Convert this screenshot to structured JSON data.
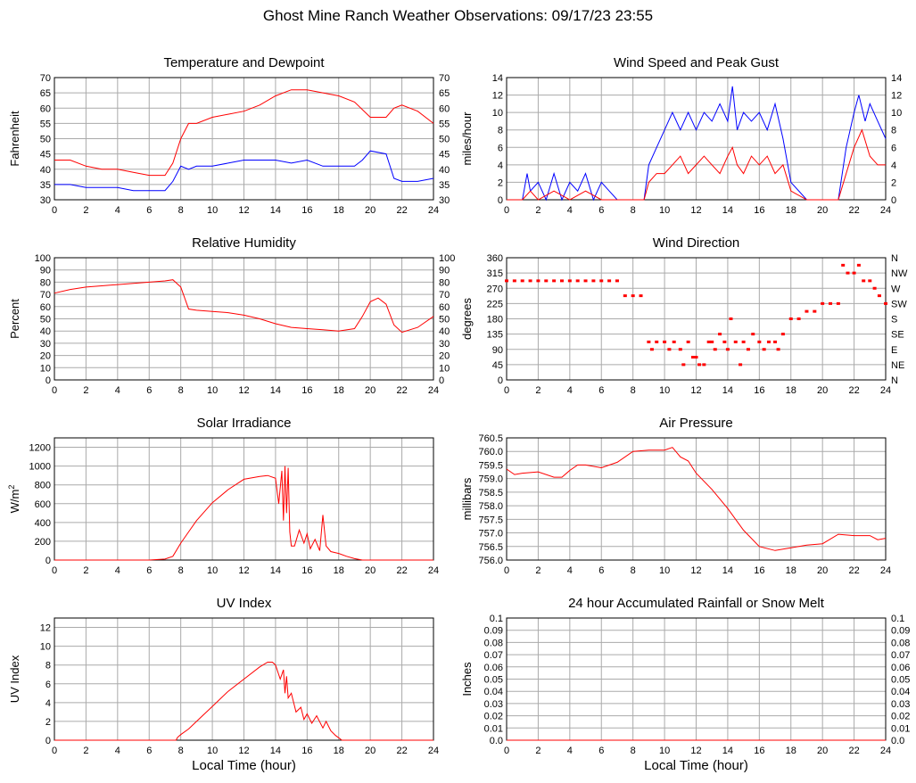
{
  "page": {
    "title": "Ghost Mine Ranch Weather Observations: 09/17/23 23:55"
  },
  "colors": {
    "primary": "#ff0000",
    "secondary": "#0000ff",
    "grid": "#aaaaaa",
    "axis": "#000000"
  },
  "chart_data": [
    {
      "id": "temp",
      "type": "line",
      "title": "Temperature and Dewpoint",
      "xlabel": "",
      "ylabel": "Fahrenheit",
      "ylabel_sup": "",
      "xlim": [
        0,
        24
      ],
      "ylim": [
        30,
        70
      ],
      "xticks": [
        "0",
        "2",
        "4",
        "6",
        "8",
        "10",
        "12",
        "14",
        "16",
        "18",
        "20",
        "22",
        "24"
      ],
      "yticks": [
        "30",
        "35",
        "40",
        "45",
        "50",
        "55",
        "60",
        "65",
        "70"
      ],
      "right_ticks": [
        "30",
        "35",
        "40",
        "45",
        "50",
        "55",
        "60",
        "65",
        "70"
      ],
      "series": [
        {
          "color": "#ff0000",
          "x": [
            0,
            1,
            2,
            3,
            4,
            5,
            6,
            7,
            7.5,
            8,
            8.5,
            9,
            10,
            11,
            12,
            13,
            14,
            15,
            16,
            17,
            18,
            19,
            20,
            21,
            21.5,
            22,
            23,
            24
          ],
          "y": [
            43,
            43,
            41,
            40,
            40,
            39,
            38,
            38,
            42,
            50,
            55,
            55,
            57,
            58,
            59,
            61,
            64,
            66,
            66,
            65,
            64,
            62,
            57,
            57,
            60,
            61,
            59,
            55
          ]
        },
        {
          "color": "#0000ff",
          "x": [
            0,
            1,
            2,
            3,
            4,
            5,
            6,
            7,
            7.5,
            8,
            8.5,
            9,
            10,
            11,
            12,
            13,
            14,
            15,
            16,
            17,
            18,
            19,
            19.5,
            20,
            21,
            21.5,
            22,
            23,
            24
          ],
          "y": [
            35,
            35,
            34,
            34,
            34,
            33,
            33,
            33,
            36,
            41,
            40,
            41,
            41,
            42,
            43,
            43,
            43,
            42,
            43,
            41,
            41,
            41,
            43,
            46,
            45,
            37,
            36,
            36,
            37
          ]
        }
      ]
    },
    {
      "id": "wind",
      "type": "line",
      "title": "Wind Speed and Peak Gust",
      "xlabel": "",
      "ylabel": "miles/hour",
      "ylabel_sup": "",
      "xlim": [
        0,
        24
      ],
      "ylim": [
        0,
        14
      ],
      "xticks": [
        "0",
        "2",
        "4",
        "6",
        "8",
        "10",
        "12",
        "14",
        "16",
        "18",
        "20",
        "22",
        "24"
      ],
      "yticks": [
        "0",
        "2",
        "4",
        "6",
        "8",
        "10",
        "12",
        "14"
      ],
      "right_ticks": [
        "0",
        "2",
        "4",
        "6",
        "8",
        "10",
        "12",
        "14"
      ],
      "series": [
        {
          "color": "#0000ff",
          "x": [
            0,
            1,
            1.3,
            1.5,
            2,
            2.5,
            3,
            3.5,
            4,
            4.5,
            5,
            5.5,
            6,
            6.5,
            7,
            8,
            8.7,
            9,
            9.5,
            10,
            10.5,
            11,
            11.5,
            12,
            12.5,
            13,
            13.5,
            14,
            14.3,
            14.6,
            15,
            15.5,
            16,
            16.5,
            17,
            17.5,
            18,
            19,
            20,
            21,
            21.5,
            22,
            22.3,
            22.7,
            23,
            23.5,
            24
          ],
          "y": [
            0,
            0,
            3,
            1,
            2,
            0,
            3,
            0,
            2,
            1,
            3,
            0,
            2,
            1,
            0,
            0,
            0,
            4,
            6,
            8,
            10,
            8,
            10,
            8,
            10,
            9,
            11,
            9,
            13,
            8,
            10,
            9,
            10,
            8,
            11,
            7,
            2,
            0,
            0,
            0,
            6,
            10,
            12,
            9,
            11,
            9,
            7
          ]
        },
        {
          "color": "#ff0000",
          "x": [
            0,
            1,
            1.5,
            2,
            3,
            4,
            5,
            6,
            8.7,
            9,
            9.5,
            10,
            10.5,
            11,
            11.5,
            12,
            12.5,
            13,
            13.5,
            14,
            14.3,
            14.6,
            15,
            15.5,
            16,
            16.5,
            17,
            17.5,
            18,
            19,
            21,
            21.5,
            22,
            22.5,
            23,
            23.5,
            24
          ],
          "y": [
            0,
            0,
            1,
            0,
            1,
            0,
            1,
            0,
            0,
            2,
            3,
            3,
            4,
            5,
            3,
            4,
            5,
            4,
            3,
            5,
            6,
            4,
            3,
            5,
            4,
            5,
            3,
            4,
            1,
            0,
            0,
            3,
            6,
            8,
            5,
            4,
            4
          ]
        }
      ]
    },
    {
      "id": "humidity",
      "type": "line",
      "title": "Relative Humidity",
      "xlabel": "",
      "ylabel": "Percent",
      "ylabel_sup": "",
      "xlim": [
        0,
        24
      ],
      "ylim": [
        0,
        100
      ],
      "xticks": [
        "0",
        "2",
        "4",
        "6",
        "8",
        "10",
        "12",
        "14",
        "16",
        "18",
        "20",
        "22",
        "24"
      ],
      "yticks": [
        "0",
        "10",
        "20",
        "30",
        "40",
        "50",
        "60",
        "70",
        "80",
        "90",
        "100"
      ],
      "right_ticks": [
        "0",
        "10",
        "20",
        "30",
        "40",
        "50",
        "60",
        "70",
        "80",
        "90",
        "100"
      ],
      "series": [
        {
          "color": "#ff0000",
          "x": [
            0,
            1,
            2,
            3,
            4,
            5,
            6,
            7,
            7.5,
            8,
            8.5,
            9,
            10,
            11,
            12,
            13,
            14,
            15,
            16,
            17,
            18,
            19,
            19.5,
            20,
            20.5,
            21,
            21.5,
            22,
            23,
            24
          ],
          "y": [
            71,
            74,
            76,
            77,
            78,
            79,
            80,
            81,
            82,
            76,
            58,
            57,
            56,
            55,
            53,
            50,
            46,
            43,
            42,
            41,
            40,
            42,
            52,
            64,
            67,
            62,
            45,
            39,
            43,
            52
          ]
        }
      ]
    },
    {
      "id": "winddir",
      "type": "scatter",
      "title": "Wind Direction",
      "xlabel": "",
      "ylabel": "degrees",
      "ylabel_sup": "",
      "xlim": [
        0,
        24
      ],
      "ylim": [
        0,
        360
      ],
      "xticks": [
        "0",
        "2",
        "4",
        "6",
        "8",
        "10",
        "12",
        "14",
        "16",
        "18",
        "20",
        "22",
        "24"
      ],
      "yticks": [
        "0",
        "45",
        "90",
        "135",
        "180",
        "225",
        "270",
        "315",
        "360"
      ],
      "right_ticks": [
        "N",
        "NE",
        "E",
        "SE",
        "S",
        "SW",
        "W",
        "NW",
        "N"
      ],
      "series": [
        {
          "color": "#ff0000",
          "x": [
            0,
            0.5,
            1,
            1.5,
            2,
            2.5,
            3,
            3.5,
            4,
            4.5,
            5,
            5.5,
            6,
            6.5,
            7,
            7.5,
            8,
            8.5,
            9,
            9.2,
            9.5,
            10,
            10.3,
            10.6,
            11,
            11.2,
            11.5,
            11.8,
            12,
            12.2,
            12.5,
            12.8,
            13,
            13.2,
            13.5,
            13.8,
            14,
            14.2,
            14.5,
            14.8,
            15,
            15.3,
            15.6,
            16,
            16.3,
            16.6,
            17,
            17.2,
            17.5,
            18,
            18.5,
            19,
            19.5,
            20,
            20.5,
            21,
            21.3,
            21.6,
            22,
            22.3,
            22.6,
            23,
            23.3,
            23.6,
            24
          ],
          "y": [
            292,
            292,
            292,
            292,
            292,
            292,
            292,
            292,
            292,
            292,
            292,
            292,
            292,
            292,
            292,
            248,
            248,
            248,
            112,
            90,
            112,
            112,
            90,
            112,
            90,
            45,
            112,
            67,
            67,
            45,
            45,
            112,
            112,
            90,
            135,
            112,
            90,
            180,
            112,
            45,
            112,
            90,
            135,
            112,
            90,
            112,
            112,
            90,
            135,
            180,
            180,
            202,
            202,
            225,
            225,
            225,
            338,
            315,
            315,
            338,
            292,
            292,
            270,
            248,
            225
          ]
        }
      ]
    },
    {
      "id": "solar",
      "type": "line",
      "title": "Solar Irradiance",
      "xlabel": "",
      "ylabel": "W/m",
      "ylabel_sup": "2",
      "xlim": [
        0,
        24
      ],
      "ylim": [
        0,
        1300
      ],
      "xticks": [
        "0",
        "2",
        "4",
        "6",
        "8",
        "10",
        "12",
        "14",
        "16",
        "18",
        "20",
        "22",
        "24"
      ],
      "yticks": [
        "0",
        "200",
        "400",
        "600",
        "800",
        "1000",
        "1200"
      ],
      "right_ticks": [],
      "series": [
        {
          "color": "#ff0000",
          "x": [
            0,
            6,
            7,
            7.5,
            8,
            8.5,
            9,
            10,
            11,
            12,
            13,
            13.5,
            14,
            14.2,
            14.4,
            14.5,
            14.6,
            14.7,
            14.8,
            14.9,
            15,
            15.2,
            15.5,
            15.8,
            16,
            16.2,
            16.5,
            16.8,
            17,
            17.2,
            17.5,
            18,
            18.5,
            19,
            19.5,
            20,
            24
          ],
          "y": [
            0,
            0,
            10,
            40,
            180,
            300,
            420,
            610,
            750,
            860,
            890,
            900,
            870,
            600,
            950,
            420,
            1000,
            500,
            980,
            300,
            150,
            150,
            320,
            180,
            280,
            120,
            220,
            100,
            480,
            150,
            90,
            70,
            40,
            15,
            0,
            0,
            0
          ]
        }
      ]
    },
    {
      "id": "pressure",
      "type": "line",
      "title": "Air Pressure",
      "xlabel": "",
      "ylabel": "millibars",
      "ylabel_sup": "",
      "xlim": [
        0,
        24
      ],
      "ylim": [
        756.0,
        760.5
      ],
      "xticks": [
        "0",
        "2",
        "4",
        "6",
        "8",
        "10",
        "12",
        "14",
        "16",
        "18",
        "20",
        "22",
        "24"
      ],
      "yticks": [
        "756.0",
        "756.5",
        "757.0",
        "757.5",
        "758.0",
        "758.5",
        "759.0",
        "759.5",
        "760.0",
        "760.5"
      ],
      "right_ticks": [],
      "series": [
        {
          "color": "#ff0000",
          "x": [
            0,
            0.5,
            1,
            2,
            3,
            3.5,
            4,
            4.5,
            5,
            6,
            7,
            8,
            9,
            10,
            10.5,
            11,
            11.5,
            12,
            13,
            14,
            15,
            16,
            17,
            18,
            19,
            20,
            21,
            22,
            23,
            23.5,
            24
          ],
          "y": [
            759.35,
            759.15,
            759.2,
            759.25,
            759.05,
            759.05,
            759.3,
            759.5,
            759.5,
            759.4,
            759.6,
            760.0,
            760.05,
            760.05,
            760.15,
            759.8,
            759.65,
            759.2,
            758.6,
            757.9,
            757.1,
            756.5,
            756.35,
            756.45,
            756.55,
            756.6,
            756.95,
            756.9,
            756.9,
            756.75,
            756.8
          ]
        }
      ]
    },
    {
      "id": "uv",
      "type": "line",
      "title": "UV Index",
      "xlabel": "Local Time (hour)",
      "ylabel": "UV Index",
      "ylabel_sup": "",
      "xlim": [
        0,
        24
      ],
      "ylim": [
        0,
        13
      ],
      "xticks": [
        "0",
        "2",
        "4",
        "6",
        "8",
        "10",
        "12",
        "14",
        "16",
        "18",
        "20",
        "22",
        "24"
      ],
      "yticks": [
        "0",
        "2",
        "4",
        "6",
        "8",
        "10",
        "12"
      ],
      "right_ticks": [],
      "series": [
        {
          "color": "#ff0000",
          "x": [
            0,
            7.7,
            7.8,
            8,
            8.5,
            9,
            10,
            11,
            12,
            13,
            13.5,
            13.8,
            14,
            14.3,
            14.5,
            14.6,
            14.7,
            14.8,
            15,
            15.3,
            15.6,
            15.8,
            16,
            16.3,
            16.6,
            17,
            17.2,
            17.5,
            17.8,
            18.2,
            24
          ],
          "y": [
            0,
            0,
            0.3,
            0.6,
            1.2,
            2,
            3.6,
            5.2,
            6.5,
            7.8,
            8.3,
            8.3,
            8,
            6.5,
            7.5,
            5,
            6.8,
            4.5,
            5,
            3,
            3.5,
            2.2,
            2.8,
            1.8,
            2.6,
            1.3,
            2,
            1,
            0.5,
            0,
            0
          ]
        }
      ]
    },
    {
      "id": "rain",
      "type": "line",
      "title": "24 hour Accumulated Rainfall or Snow Melt",
      "xlabel": "Local Time (hour)",
      "ylabel": "Inches",
      "ylabel_sup": "",
      "xlim": [
        0,
        24
      ],
      "ylim": [
        0,
        0.1
      ],
      "xticks": [
        "0",
        "2",
        "4",
        "6",
        "8",
        "10",
        "12",
        "14",
        "16",
        "18",
        "20",
        "22",
        "24"
      ],
      "yticks": [
        "0.0",
        "0.01",
        "0.02",
        "0.03",
        "0.04",
        "0.05",
        "0.06",
        "0.07",
        "0.08",
        "0.09",
        "0.1"
      ],
      "right_ticks": [
        "0.0",
        "0.01",
        "0.02",
        "0.03",
        "0.04",
        "0.05",
        "0.06",
        "0.07",
        "0.08",
        "0.09",
        "0.1"
      ],
      "series": [
        {
          "color": "#ff0000",
          "x": [
            0,
            24
          ],
          "y": [
            0,
            0
          ]
        }
      ]
    }
  ]
}
